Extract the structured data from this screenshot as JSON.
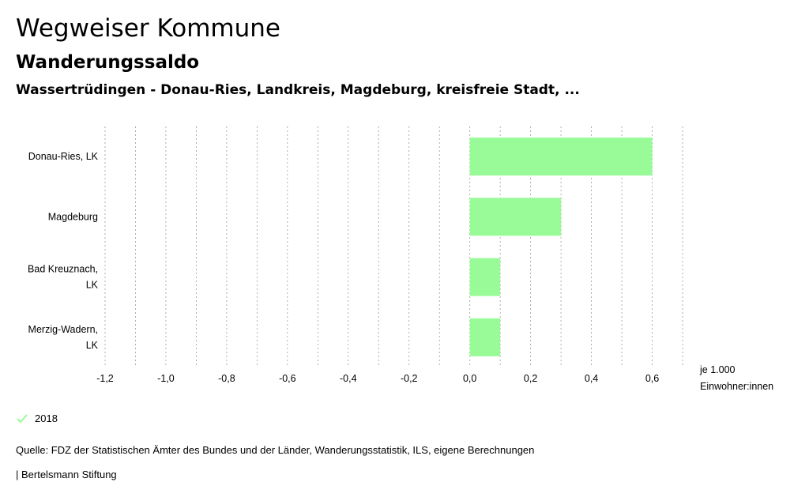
{
  "header": {
    "title": "Wegweiser Kommune",
    "subtitle": "Wanderungssaldo",
    "region": "Wassertrüdingen - Donau-Ries, Landkreis, Magdeburg, kreisfreie Stadt, ..."
  },
  "chart_data": {
    "type": "bar",
    "orientation": "horizontal",
    "categories": [
      [
        "Donau-Ries, LK"
      ],
      [
        "Magdeburg"
      ],
      [
        "Bad Kreuznach,",
        "LK"
      ],
      [
        "Merzig-Wadern,",
        "LK"
      ]
    ],
    "series": [
      {
        "name": "2018",
        "values": [
          0.6,
          0.3,
          0.1,
          0.1
        ],
        "color": "#98fb98"
      }
    ],
    "xlim": [
      -1.2,
      0.7
    ],
    "xticks": [
      -1.2,
      -1.0,
      -0.8,
      -0.6,
      -0.4,
      -0.2,
      0.0,
      0.2,
      0.4,
      0.6
    ],
    "xtick_labels": [
      "-1,2",
      "-1,0",
      "-0,8",
      "-0,6",
      "-0,4",
      "-0,2",
      "0,0",
      "0,2",
      "0,4",
      "0,6"
    ],
    "grid_step": 0.1,
    "unit_label": [
      "je 1.000",
      "Einwohner:innen"
    ],
    "grid": true
  },
  "legend": {
    "label": "2018",
    "color": "#98fb98"
  },
  "footer": {
    "source": "Quelle: FDZ der Statistischen Ämter des Bundes und der Länder, Wanderungsstatistik, ILS, eigene Berechnungen",
    "publisher": "| Bertelsmann Stiftung"
  }
}
